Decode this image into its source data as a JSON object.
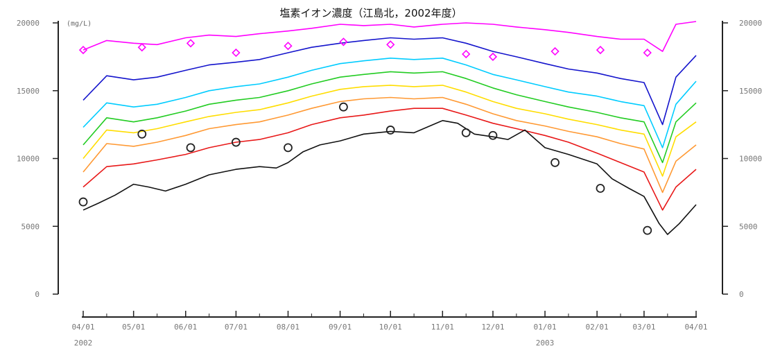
{
  "chart_data": {
    "type": "line",
    "title": "塩素イオン濃度（江島北，2002年度）",
    "unit_label": "(mg/L)",
    "ylim": [
      0,
      20000
    ],
    "y_ticks": [
      {
        "value": 0,
        "label": "0"
      },
      {
        "value": 5000,
        "label": "5000"
      },
      {
        "value": 10000,
        "label": "10000"
      },
      {
        "value": 15000,
        "label": "15000"
      },
      {
        "value": 20000,
        "label": "20000"
      }
    ],
    "x_range": [
      "2002-04-01",
      "2003-04-01"
    ],
    "x_ticks": [
      {
        "date": "2002-04-01",
        "label": "04/01"
      },
      {
        "date": "2002-05-01",
        "label": "05/01"
      },
      {
        "date": "2002-06-01",
        "label": "06/01"
      },
      {
        "date": "2002-07-01",
        "label": "07/01"
      },
      {
        "date": "2002-08-01",
        "label": "08/01"
      },
      {
        "date": "2002-09-01",
        "label": "09/01"
      },
      {
        "date": "2002-10-01",
        "label": "10/01"
      },
      {
        "date": "2002-11-01",
        "label": "11/01"
      },
      {
        "date": "2002-12-01",
        "label": "12/01"
      },
      {
        "date": "2003-01-01",
        "label": "01/01"
      },
      {
        "date": "2003-02-01",
        "label": "02/01"
      },
      {
        "date": "2003-03-01",
        "label": "03/01"
      },
      {
        "date": "2003-04-01",
        "label": "04/01"
      }
    ],
    "year_labels": [
      {
        "date": "2002-04-01",
        "label": "2002"
      },
      {
        "date": "2003-01-01",
        "label": "2003"
      }
    ],
    "grid": false,
    "series": [
      {
        "color": "#ff00ff",
        "values": [
          [
            "2002-04-01",
            18000
          ],
          [
            "2002-04-15",
            18700
          ],
          [
            "2002-05-01",
            18500
          ],
          [
            "2002-05-15",
            18400
          ],
          [
            "2002-06-01",
            18900
          ],
          [
            "2002-06-15",
            19100
          ],
          [
            "2002-07-01",
            19000
          ],
          [
            "2002-07-15",
            19200
          ],
          [
            "2002-08-01",
            19400
          ],
          [
            "2002-08-15",
            19600
          ],
          [
            "2002-09-01",
            19900
          ],
          [
            "2002-09-15",
            19800
          ],
          [
            "2002-10-01",
            19900
          ],
          [
            "2002-10-15",
            19700
          ],
          [
            "2002-11-01",
            19900
          ],
          [
            "2002-11-15",
            20000
          ],
          [
            "2002-12-01",
            19900
          ],
          [
            "2002-12-15",
            19700
          ],
          [
            "2003-01-01",
            19500
          ],
          [
            "2003-01-15",
            19300
          ],
          [
            "2003-02-01",
            19000
          ],
          [
            "2003-02-15",
            18800
          ],
          [
            "2003-03-01",
            18800
          ],
          [
            "2003-03-12",
            17900
          ],
          [
            "2003-03-20",
            19900
          ],
          [
            "2003-04-01",
            20100
          ]
        ]
      },
      {
        "color": "#1414cc",
        "values": [
          [
            "2002-04-01",
            14300
          ],
          [
            "2002-04-15",
            16100
          ],
          [
            "2002-05-01",
            15800
          ],
          [
            "2002-05-15",
            16000
          ],
          [
            "2002-06-01",
            16500
          ],
          [
            "2002-06-15",
            16900
          ],
          [
            "2002-07-01",
            17100
          ],
          [
            "2002-07-15",
            17300
          ],
          [
            "2002-08-01",
            17800
          ],
          [
            "2002-08-15",
            18200
          ],
          [
            "2002-09-01",
            18500
          ],
          [
            "2002-09-15",
            18700
          ],
          [
            "2002-10-01",
            18900
          ],
          [
            "2002-10-15",
            18800
          ],
          [
            "2002-11-01",
            18900
          ],
          [
            "2002-11-15",
            18500
          ],
          [
            "2002-12-01",
            17900
          ],
          [
            "2002-12-15",
            17500
          ],
          [
            "2003-01-01",
            17000
          ],
          [
            "2003-01-15",
            16600
          ],
          [
            "2003-02-01",
            16300
          ],
          [
            "2003-02-15",
            15900
          ],
          [
            "2003-03-01",
            15600
          ],
          [
            "2003-03-12",
            12500
          ],
          [
            "2003-03-20",
            16000
          ],
          [
            "2003-04-01",
            17600
          ]
        ]
      },
      {
        "color": "#00ccff",
        "values": [
          [
            "2002-04-01",
            12300
          ],
          [
            "2002-04-15",
            14100
          ],
          [
            "2002-05-01",
            13800
          ],
          [
            "2002-05-15",
            14000
          ],
          [
            "2002-06-01",
            14500
          ],
          [
            "2002-06-15",
            15000
          ],
          [
            "2002-07-01",
            15300
          ],
          [
            "2002-07-15",
            15500
          ],
          [
            "2002-08-01",
            16000
          ],
          [
            "2002-08-15",
            16500
          ],
          [
            "2002-09-01",
            17000
          ],
          [
            "2002-09-15",
            17200
          ],
          [
            "2002-10-01",
            17400
          ],
          [
            "2002-10-15",
            17300
          ],
          [
            "2002-11-01",
            17400
          ],
          [
            "2002-11-15",
            16900
          ],
          [
            "2002-12-01",
            16200
          ],
          [
            "2002-12-15",
            15800
          ],
          [
            "2003-01-01",
            15300
          ],
          [
            "2003-01-15",
            14900
          ],
          [
            "2003-02-01",
            14600
          ],
          [
            "2003-02-15",
            14200
          ],
          [
            "2003-03-01",
            13900
          ],
          [
            "2003-03-12",
            10800
          ],
          [
            "2003-03-20",
            14000
          ],
          [
            "2003-04-01",
            15700
          ]
        ]
      },
      {
        "color": "#22cc22",
        "values": [
          [
            "2002-04-01",
            11000
          ],
          [
            "2002-04-15",
            13000
          ],
          [
            "2002-05-01",
            12700
          ],
          [
            "2002-05-15",
            13000
          ],
          [
            "2002-06-01",
            13500
          ],
          [
            "2002-06-15",
            14000
          ],
          [
            "2002-07-01",
            14300
          ],
          [
            "2002-07-15",
            14500
          ],
          [
            "2002-08-01",
            15000
          ],
          [
            "2002-08-15",
            15500
          ],
          [
            "2002-09-01",
            16000
          ],
          [
            "2002-09-15",
            16200
          ],
          [
            "2002-10-01",
            16400
          ],
          [
            "2002-10-15",
            16300
          ],
          [
            "2002-11-01",
            16400
          ],
          [
            "2002-11-15",
            15900
          ],
          [
            "2002-12-01",
            15200
          ],
          [
            "2002-12-15",
            14700
          ],
          [
            "2003-01-01",
            14200
          ],
          [
            "2003-01-15",
            13800
          ],
          [
            "2003-02-01",
            13400
          ],
          [
            "2003-02-15",
            13000
          ],
          [
            "2003-03-01",
            12700
          ],
          [
            "2003-03-12",
            9700
          ],
          [
            "2003-03-20",
            12700
          ],
          [
            "2003-04-01",
            14100
          ]
        ]
      },
      {
        "color": "#ffdd00",
        "values": [
          [
            "2002-04-01",
            10000
          ],
          [
            "2002-04-15",
            12100
          ],
          [
            "2002-05-01",
            11900
          ],
          [
            "2002-05-15",
            12200
          ],
          [
            "2002-06-01",
            12700
          ],
          [
            "2002-06-15",
            13100
          ],
          [
            "2002-07-01",
            13400
          ],
          [
            "2002-07-15",
            13600
          ],
          [
            "2002-08-01",
            14100
          ],
          [
            "2002-08-15",
            14600
          ],
          [
            "2002-09-01",
            15100
          ],
          [
            "2002-09-15",
            15300
          ],
          [
            "2002-10-01",
            15400
          ],
          [
            "2002-10-15",
            15300
          ],
          [
            "2002-11-01",
            15400
          ],
          [
            "2002-11-15",
            14900
          ],
          [
            "2002-12-01",
            14200
          ],
          [
            "2002-12-15",
            13700
          ],
          [
            "2003-01-01",
            13300
          ],
          [
            "2003-01-15",
            12900
          ],
          [
            "2003-02-01",
            12500
          ],
          [
            "2003-02-15",
            12100
          ],
          [
            "2003-03-01",
            11800
          ],
          [
            "2003-03-12",
            8700
          ],
          [
            "2003-03-20",
            11600
          ],
          [
            "2003-04-01",
            12700
          ]
        ]
      },
      {
        "color": "#ff9933",
        "values": [
          [
            "2002-04-01",
            9000
          ],
          [
            "2002-04-15",
            11100
          ],
          [
            "2002-05-01",
            10900
          ],
          [
            "2002-05-15",
            11200
          ],
          [
            "2002-06-01",
            11700
          ],
          [
            "2002-06-15",
            12200
          ],
          [
            "2002-07-01",
            12500
          ],
          [
            "2002-07-15",
            12700
          ],
          [
            "2002-08-01",
            13200
          ],
          [
            "2002-08-15",
            13700
          ],
          [
            "2002-09-01",
            14200
          ],
          [
            "2002-09-15",
            14400
          ],
          [
            "2002-10-01",
            14500
          ],
          [
            "2002-10-15",
            14400
          ],
          [
            "2002-11-01",
            14500
          ],
          [
            "2002-11-15",
            14000
          ],
          [
            "2002-12-01",
            13300
          ],
          [
            "2002-12-15",
            12800
          ],
          [
            "2003-01-01",
            12400
          ],
          [
            "2003-01-15",
            12000
          ],
          [
            "2003-02-01",
            11600
          ],
          [
            "2003-02-15",
            11100
          ],
          [
            "2003-03-01",
            10700
          ],
          [
            "2003-03-12",
            7500
          ],
          [
            "2003-03-20",
            9800
          ],
          [
            "2003-04-01",
            11000
          ]
        ]
      },
      {
        "color": "#e81818",
        "values": [
          [
            "2002-04-01",
            7900
          ],
          [
            "2002-04-15",
            9400
          ],
          [
            "2002-05-01",
            9600
          ],
          [
            "2002-05-15",
            9900
          ],
          [
            "2002-06-01",
            10300
          ],
          [
            "2002-06-15",
            10800
          ],
          [
            "2002-07-01",
            11200
          ],
          [
            "2002-07-15",
            11400
          ],
          [
            "2002-08-01",
            11900
          ],
          [
            "2002-08-15",
            12500
          ],
          [
            "2002-09-01",
            13000
          ],
          [
            "2002-09-15",
            13200
          ],
          [
            "2002-10-01",
            13500
          ],
          [
            "2002-10-15",
            13700
          ],
          [
            "2002-11-01",
            13700
          ],
          [
            "2002-11-15",
            13200
          ],
          [
            "2002-12-01",
            12600
          ],
          [
            "2002-12-15",
            12200
          ],
          [
            "2003-01-01",
            11700
          ],
          [
            "2003-01-15",
            11200
          ],
          [
            "2003-02-01",
            10400
          ],
          [
            "2003-02-15",
            9700
          ],
          [
            "2003-03-01",
            9000
          ],
          [
            "2003-03-12",
            6200
          ],
          [
            "2003-03-20",
            7900
          ],
          [
            "2003-04-01",
            9200
          ]
        ]
      },
      {
        "color": "#111111",
        "values": [
          [
            "2002-04-01",
            6200
          ],
          [
            "2002-04-10",
            6700
          ],
          [
            "2002-04-20",
            7300
          ],
          [
            "2002-05-01",
            8100
          ],
          [
            "2002-05-10",
            7900
          ],
          [
            "2002-05-20",
            7600
          ],
          [
            "2002-06-01",
            8100
          ],
          [
            "2002-06-15",
            8800
          ],
          [
            "2002-07-01",
            9200
          ],
          [
            "2002-07-15",
            9400
          ],
          [
            "2002-07-25",
            9300
          ],
          [
            "2002-08-01",
            9700
          ],
          [
            "2002-08-10",
            10500
          ],
          [
            "2002-08-20",
            11000
          ],
          [
            "2002-09-01",
            11300
          ],
          [
            "2002-09-15",
            11800
          ],
          [
            "2002-10-01",
            12000
          ],
          [
            "2002-10-15",
            11900
          ],
          [
            "2002-11-01",
            12800
          ],
          [
            "2002-11-10",
            12600
          ],
          [
            "2002-11-20",
            11800
          ],
          [
            "2002-12-01",
            11600
          ],
          [
            "2002-12-10",
            11400
          ],
          [
            "2002-12-20",
            12100
          ],
          [
            "2003-01-01",
            10800
          ],
          [
            "2003-01-15",
            10300
          ],
          [
            "2003-02-01",
            9600
          ],
          [
            "2003-02-10",
            8500
          ],
          [
            "2003-02-20",
            7800
          ],
          [
            "2003-03-01",
            7200
          ],
          [
            "2003-03-10",
            5200
          ],
          [
            "2003-03-15",
            4400
          ],
          [
            "2003-03-22",
            5200
          ],
          [
            "2003-04-01",
            6600
          ]
        ]
      }
    ],
    "markers_circle": [
      [
        "2002-04-01",
        6800
      ],
      [
        "2002-05-06",
        11800
      ],
      [
        "2002-06-04",
        10800
      ],
      [
        "2002-07-01",
        11200
      ],
      [
        "2002-08-01",
        10800
      ],
      [
        "2002-09-03",
        13800
      ],
      [
        "2002-10-01",
        12100
      ],
      [
        "2002-11-15",
        11900
      ],
      [
        "2002-12-01",
        11700
      ],
      [
        "2003-01-07",
        9700
      ],
      [
        "2003-02-03",
        7800
      ],
      [
        "2003-03-03",
        4700
      ]
    ],
    "markers_diamond": [
      [
        "2002-04-01",
        18000
      ],
      [
        "2002-05-06",
        18200
      ],
      [
        "2002-06-04",
        18500
      ],
      [
        "2002-07-01",
        17800
      ],
      [
        "2002-08-01",
        18300
      ],
      [
        "2002-09-03",
        18600
      ],
      [
        "2002-10-01",
        18400
      ],
      [
        "2002-11-15",
        17700
      ],
      [
        "2002-12-01",
        17500
      ],
      [
        "2003-01-07",
        17900
      ],
      [
        "2003-02-03",
        18000
      ],
      [
        "2003-03-03",
        17800
      ]
    ]
  }
}
